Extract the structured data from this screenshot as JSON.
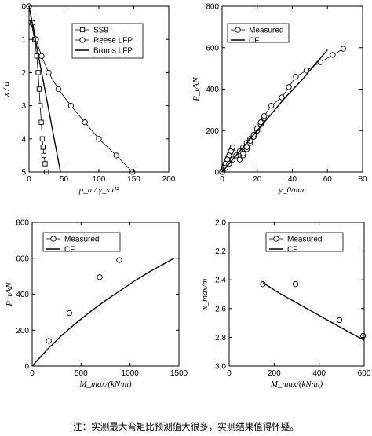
{
  "note": "注：实测最大弯矩比预测值大很多，实测结果值得怀疑。",
  "chart_data": [
    {
      "id": "a",
      "type": "line",
      "xlabel": "p_u / γ_s d²",
      "ylabel": "x / d",
      "xlim": [
        0,
        200
      ],
      "ylim": [
        5,
        0
      ],
      "y_inverted": true,
      "x_ticks": [
        0,
        50,
        100,
        150,
        200
      ],
      "y_ticks": [
        0,
        1,
        2,
        3,
        4,
        5
      ],
      "legend_position": "top-right",
      "series": [
        {
          "name": "SS9",
          "marker": "square",
          "x": [
            3,
            8,
            11,
            13,
            14.5,
            16,
            17.5,
            19,
            20,
            21.3,
            23,
            25
          ],
          "y": [
            0.5,
            1.0,
            1.5,
            2.0,
            2.5,
            3.0,
            3.5,
            4.0,
            4.25,
            4.5,
            4.75,
            5.0
          ]
        },
        {
          "name": "Reese LFP",
          "marker": "circle",
          "x": [
            0,
            5,
            10,
            18,
            28,
            42,
            60,
            80,
            100,
            125,
            148
          ],
          "y": [
            0,
            0.5,
            1.0,
            1.5,
            2.0,
            2.5,
            3.0,
            3.5,
            4.0,
            4.5,
            5.0
          ]
        },
        {
          "name": "Broms LFP",
          "marker": "none",
          "x": [
            0,
            45
          ],
          "y": [
            0,
            5
          ]
        }
      ]
    },
    {
      "id": "b",
      "type": "scatter",
      "xlabel": "y_0/mm",
      "ylabel": "P_t/kN",
      "xlim": [
        0,
        80
      ],
      "ylim": [
        0,
        800
      ],
      "x_ticks": [
        0,
        20,
        40,
        60,
        80
      ],
      "y_ticks": [
        0,
        200,
        400,
        600,
        800
      ],
      "legend_position": "top-left",
      "series": [
        {
          "name": "Measured",
          "marker": "circle",
          "connected": true,
          "x": [
            0,
            0.5,
            1,
            1.5,
            2,
            2.5,
            3,
            3.5,
            4,
            4.5,
            5,
            5.5,
            6,
            5,
            4,
            3,
            2,
            1,
            0,
            2,
            4,
            6,
            8,
            10,
            12,
            14,
            16,
            18,
            20,
            22,
            24,
            22,
            20,
            18,
            16,
            14,
            12,
            10,
            12,
            14,
            16,
            18,
            20,
            22,
            24,
            28,
            34,
            38,
            42,
            48,
            56,
            63,
            69
          ],
          "y": [
            0,
            10,
            20,
            30,
            40,
            50,
            60,
            70,
            80,
            90,
            100,
            110,
            120,
            100,
            80,
            60,
            40,
            20,
            0,
            20,
            40,
            60,
            80,
            100,
            120,
            140,
            160,
            180,
            200,
            230,
            260,
            230,
            200,
            170,
            140,
            110,
            80,
            60,
            90,
            120,
            150,
            180,
            210,
            240,
            270,
            320,
            360,
            410,
            460,
            490,
            530,
            565,
            595
          ]
        },
        {
          "name": "CF",
          "marker": "none",
          "x": [
            0,
            3,
            7,
            11,
            16,
            22,
            28,
            36,
            45,
            53,
            60
          ],
          "y": [
            0,
            30,
            70,
            110,
            160,
            220,
            280,
            360,
            440,
            520,
            590
          ]
        }
      ]
    },
    {
      "id": "c",
      "type": "scatter",
      "xlabel": "M_max/(kN·m)",
      "ylabel": "P_t/kN",
      "xlim": [
        0,
        1500
      ],
      "ylim": [
        0,
        800
      ],
      "x_ticks": [
        0,
        500,
        1000,
        1500
      ],
      "y_ticks": [
        0,
        200,
        400,
        600,
        800
      ],
      "legend_position": "top-left",
      "series": [
        {
          "name": "Measured",
          "marker": "circle",
          "x": [
            170,
            380,
            690,
            890
          ],
          "y": [
            140,
            295,
            495,
            590
          ]
        },
        {
          "name": "CF",
          "marker": "none",
          "x": [
            0,
            150,
            300,
            450,
            600,
            750,
            900,
            1050,
            1200,
            1350,
            1450
          ],
          "y": [
            0,
            90,
            170,
            240,
            305,
            365,
            420,
            475,
            525,
            570,
            600
          ]
        }
      ]
    },
    {
      "id": "d",
      "type": "scatter",
      "xlabel": "M_max/(kN·m)",
      "ylabel": "x_max/m",
      "xlim": [
        0,
        600
      ],
      "ylim": [
        3.0,
        2.0
      ],
      "y_inverted": true,
      "x_ticks": [
        0,
        200,
        400,
        600
      ],
      "y_ticks": [
        2.0,
        2.2,
        2.4,
        2.6,
        2.8,
        3.0
      ],
      "legend_position": "top-right",
      "series": [
        {
          "name": "Measured",
          "marker": "circle",
          "x": [
            150,
            295,
            490,
            595
          ],
          "y": [
            2.43,
            2.43,
            2.68,
            2.79
          ]
        },
        {
          "name": "CF",
          "marker": "none",
          "x": [
            150,
            220,
            300,
            380,
            460,
            540,
            600
          ],
          "y": [
            2.42,
            2.49,
            2.56,
            2.63,
            2.7,
            2.77,
            2.82
          ]
        }
      ]
    }
  ]
}
